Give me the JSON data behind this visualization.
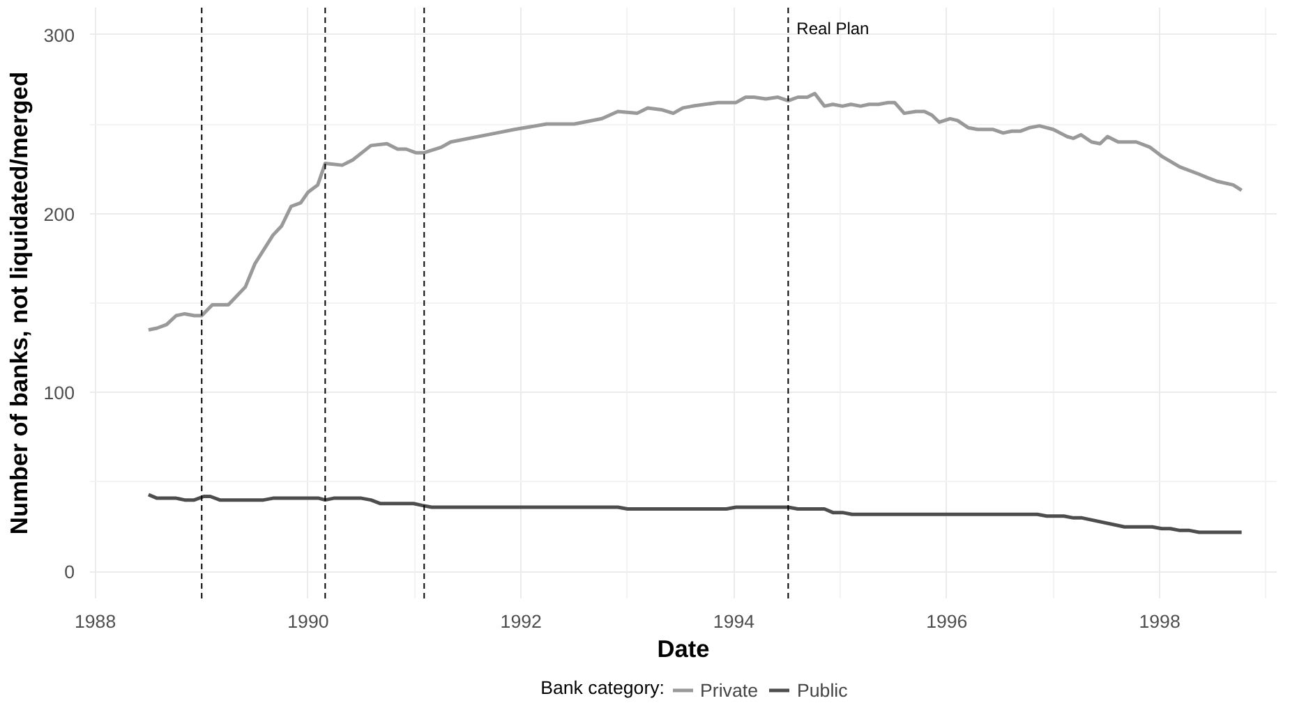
{
  "chart_data": {
    "type": "line",
    "xlabel": "Date",
    "ylabel": "Number of banks, not liquidated/merged",
    "legend_title": "Bank category:",
    "legend": "bottom",
    "grid": true,
    "line_style": "solid",
    "marker": "none",
    "xlim": [
      1987.95,
      1999.1
    ],
    "ylim": [
      -15,
      315
    ],
    "xticks": [
      1988,
      1990,
      1992,
      1994,
      1996,
      1998
    ],
    "yticks": [
      0,
      100,
      200,
      300
    ],
    "series": [
      {
        "name": "Private",
        "color": "#999999",
        "x": [
          1988.5,
          1988.58,
          1988.67,
          1988.76,
          1988.84,
          1988.93,
          1989.0,
          1989.1,
          1989.25,
          1989.41,
          1989.5,
          1989.67,
          1989.75,
          1989.84,
          1989.93,
          1990.0,
          1990.09,
          1990.16,
          1990.32,
          1990.42,
          1990.59,
          1990.74,
          1990.84,
          1990.92,
          1991.01,
          1991.09,
          1991.25,
          1991.34,
          1991.77,
          1991.94,
          1992.24,
          1992.5,
          1992.76,
          1992.91,
          1993.09,
          1993.19,
          1993.32,
          1993.43,
          1993.52,
          1993.61,
          1993.85,
          1994.02,
          1994.11,
          1994.19,
          1994.3,
          1994.41,
          1994.51,
          1994.6,
          1994.69,
          1994.76,
          1994.85,
          1994.93,
          1995.02,
          1995.1,
          1995.19,
          1995.27,
          1995.36,
          1995.45,
          1995.51,
          1995.6,
          1995.71,
          1995.79,
          1995.86,
          1995.93,
          1996.03,
          1996.1,
          1996.2,
          1996.29,
          1996.43,
          1996.53,
          1996.61,
          1996.69,
          1996.78,
          1996.87,
          1997.0,
          1997.13,
          1997.19,
          1997.26,
          1997.36,
          1997.44,
          1997.51,
          1997.61,
          1997.78,
          1997.91,
          1998.02,
          1998.19,
          1998.37,
          1998.45,
          1998.54,
          1998.69,
          1998.77
        ],
        "values": [
          135,
          136,
          138,
          143,
          144,
          143,
          143,
          149,
          149,
          159,
          172,
          188,
          193,
          204,
          206,
          212,
          216,
          228,
          227,
          230,
          238,
          239,
          236,
          236,
          234,
          234,
          237,
          240,
          245,
          247,
          250,
          250,
          253,
          257,
          256,
          259,
          258,
          256,
          259,
          260,
          262,
          262,
          265,
          265,
          264,
          265,
          263,
          265,
          265,
          267,
          260,
          261,
          260,
          261,
          260,
          261,
          261,
          262,
          262,
          256,
          257,
          257,
          255,
          251,
          253,
          252,
          248,
          247,
          247,
          245,
          246,
          246,
          248,
          249,
          247,
          243,
          242,
          244,
          240,
          239,
          243,
          240,
          240,
          237,
          232,
          226,
          222,
          220,
          218,
          216,
          213
        ]
      },
      {
        "name": "Public",
        "color": "#4d4d4d",
        "x": [
          1988.5,
          1988.58,
          1988.76,
          1988.84,
          1988.93,
          1989.02,
          1989.08,
          1989.17,
          1989.58,
          1989.67,
          1990.1,
          1990.16,
          1990.24,
          1990.5,
          1990.59,
          1990.68,
          1990.99,
          1991.07,
          1991.16,
          1992.91,
          1993.0,
          1993.93,
          1994.02,
          1994.51,
          1994.6,
          1994.85,
          1994.93,
          1995.02,
          1995.11,
          1996.85,
          1996.94,
          1997.1,
          1997.19,
          1997.27,
          1997.67,
          1997.93,
          1998.02,
          1998.1,
          1998.19,
          1998.28,
          1998.37,
          1998.77
        ],
        "values": [
          43,
          41,
          41,
          40,
          40,
          42,
          42,
          40,
          40,
          41,
          41,
          40,
          41,
          41,
          40,
          38,
          38,
          37,
          36,
          36,
          35,
          35,
          36,
          36,
          35,
          35,
          33,
          33,
          32,
          32,
          31,
          31,
          30,
          30,
          25,
          25,
          24,
          24,
          23,
          23,
          22,
          22
        ]
      }
    ],
    "ref_lines": [
      {
        "axis": "x",
        "value": 1989.0,
        "color": "#000000",
        "line_style": "dashed"
      },
      {
        "axis": "x",
        "value": 1990.16,
        "color": "#000000",
        "line_style": "dashed"
      },
      {
        "axis": "x",
        "value": 1991.09,
        "color": "#000000",
        "line_style": "dashed"
      },
      {
        "axis": "x",
        "value": 1994.51,
        "color": "#000000",
        "line_style": "dashed",
        "label": "Real Plan"
      }
    ]
  }
}
